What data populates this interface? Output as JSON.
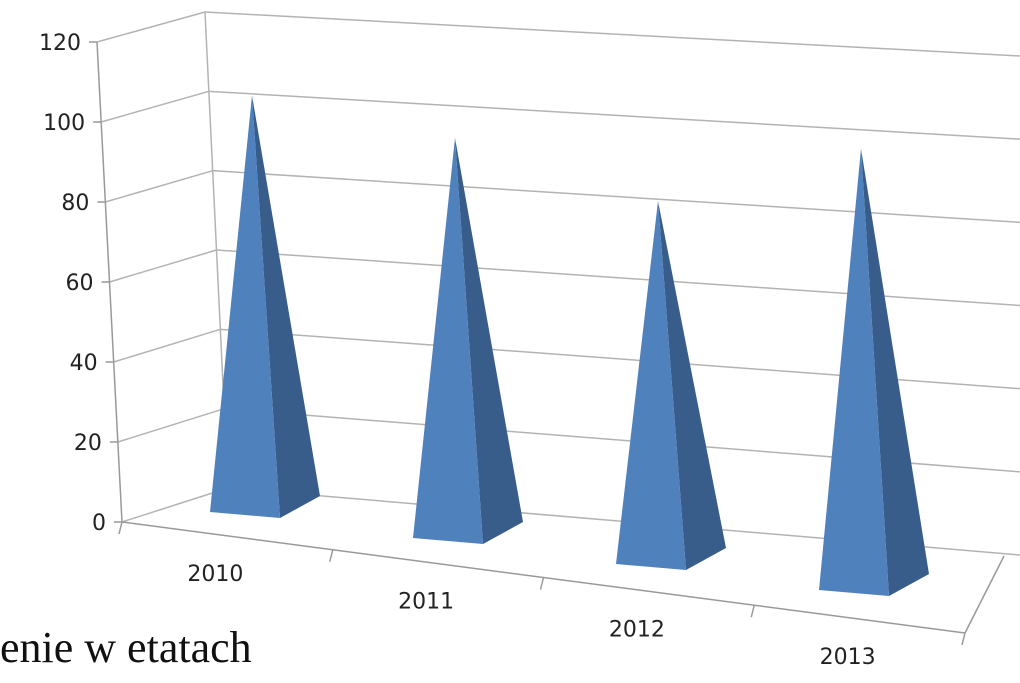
{
  "chart_data": {
    "type": "bar",
    "style": "3d-pyramid",
    "categories": [
      "2010",
      "2011",
      "2012",
      "2013"
    ],
    "values": [
      101,
      97,
      88,
      107
    ],
    "ylim": [
      0,
      120
    ],
    "yticks": [
      0,
      20,
      40,
      60,
      80,
      100,
      120
    ],
    "grid": true,
    "legend": "none",
    "colors": {
      "front": "#4f81bd",
      "side": "#385d8a",
      "grid": "#b3b3b3",
      "axis": "#999999"
    }
  },
  "caption_text": "enie w etatach"
}
